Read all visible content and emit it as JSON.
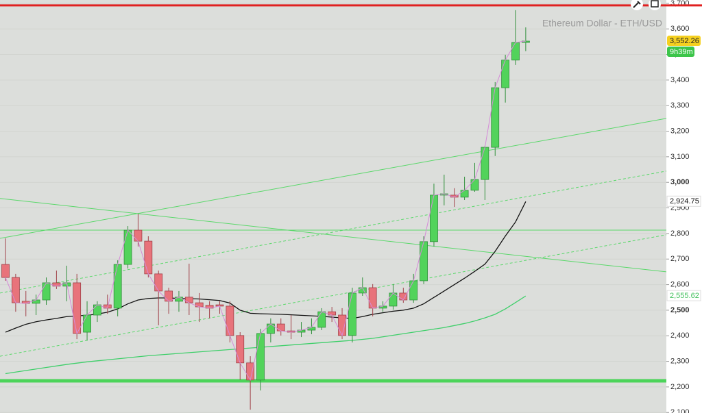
{
  "chart_data": {
    "type": "candlestick",
    "title": "Ethereum Dollar - ETH/USD",
    "ylim": [
      2098,
      3713
    ],
    "yticks": [
      {
        "value": 2100,
        "label": "2,100"
      },
      {
        "value": 2200,
        "label": "2,200"
      },
      {
        "value": 2300,
        "label": "2,300"
      },
      {
        "value": 2400,
        "label": "2,400"
      },
      {
        "value": 2500,
        "label": "2,500",
        "bold": true
      },
      {
        "value": 2600,
        "label": "2,600"
      },
      {
        "value": 2700,
        "label": "2,700"
      },
      {
        "value": 2800,
        "label": "2,800"
      },
      {
        "value": 2900,
        "label": "2,900"
      },
      {
        "value": 3000,
        "label": "3,000",
        "bold": true
      },
      {
        "value": 3100,
        "label": "3,100"
      },
      {
        "value": 3200,
        "label": "3,200"
      },
      {
        "value": 3300,
        "label": "3,300"
      },
      {
        "value": 3400,
        "label": "3,400"
      },
      {
        "value": 3500,
        "label": "3,500"
      },
      {
        "value": 3600,
        "label": "3,600"
      },
      {
        "value": 3700,
        "label": "3,700"
      }
    ],
    "grid": true,
    "up_color": "#52d35b",
    "down_color": "#e8737b",
    "close_line_color": "#d58ad8",
    "candles": [
      {
        "open": 2679,
        "high": 2781,
        "low": 2615,
        "close": 2628
      },
      {
        "open": 2628,
        "high": 2642,
        "low": 2494,
        "close": 2529
      },
      {
        "open": 2535,
        "high": 2575,
        "low": 2476,
        "close": 2527
      },
      {
        "open": 2527,
        "high": 2561,
        "low": 2481,
        "close": 2540
      },
      {
        "open": 2540,
        "high": 2628,
        "low": 2521,
        "close": 2607
      },
      {
        "open": 2607,
        "high": 2655,
        "low": 2583,
        "close": 2594
      },
      {
        "open": 2594,
        "high": 2674,
        "low": 2535,
        "close": 2607
      },
      {
        "open": 2607,
        "high": 2642,
        "low": 2387,
        "close": 2409
      },
      {
        "open": 2414,
        "high": 2535,
        "low": 2382,
        "close": 2481
      },
      {
        "open": 2481,
        "high": 2535,
        "low": 2454,
        "close": 2521
      },
      {
        "open": 2521,
        "high": 2561,
        "low": 2486,
        "close": 2508
      },
      {
        "open": 2508,
        "high": 2695,
        "low": 2476,
        "close": 2679
      },
      {
        "open": 2679,
        "high": 2829,
        "low": 2663,
        "close": 2813
      },
      {
        "open": 2813,
        "high": 2877,
        "low": 2749,
        "close": 2770
      },
      {
        "open": 2770,
        "high": 2789,
        "low": 2628,
        "close": 2642
      },
      {
        "open": 2642,
        "high": 2655,
        "low": 2441,
        "close": 2575
      },
      {
        "open": 2575,
        "high": 2588,
        "low": 2486,
        "close": 2535
      },
      {
        "open": 2535,
        "high": 2575,
        "low": 2494,
        "close": 2551
      },
      {
        "open": 2551,
        "high": 2682,
        "low": 2481,
        "close": 2529
      },
      {
        "open": 2529,
        "high": 2567,
        "low": 2454,
        "close": 2513
      },
      {
        "open": 2519,
        "high": 2535,
        "low": 2468,
        "close": 2508
      },
      {
        "open": 2521,
        "high": 2535,
        "low": 2486,
        "close": 2516
      },
      {
        "open": 2516,
        "high": 2535,
        "low": 2374,
        "close": 2401
      },
      {
        "open": 2401,
        "high": 2414,
        "low": 2227,
        "close": 2294
      },
      {
        "open": 2294,
        "high": 2320,
        "low": 2111,
        "close": 2227
      },
      {
        "open": 2227,
        "high": 2427,
        "low": 2186,
        "close": 2409
      },
      {
        "open": 2409,
        "high": 2468,
        "low": 2374,
        "close": 2446
      },
      {
        "open": 2446,
        "high": 2468,
        "low": 2401,
        "close": 2419
      },
      {
        "open": 2419,
        "high": 2481,
        "low": 2387,
        "close": 2414
      },
      {
        "open": 2414,
        "high": 2454,
        "low": 2395,
        "close": 2422
      },
      {
        "open": 2422,
        "high": 2468,
        "low": 2406,
        "close": 2433
      },
      {
        "open": 2433,
        "high": 2508,
        "low": 2422,
        "close": 2494
      },
      {
        "open": 2494,
        "high": 2513,
        "low": 2454,
        "close": 2481
      },
      {
        "open": 2481,
        "high": 2508,
        "low": 2387,
        "close": 2401
      },
      {
        "open": 2401,
        "high": 2588,
        "low": 2374,
        "close": 2567
      },
      {
        "open": 2567,
        "high": 2628,
        "low": 2556,
        "close": 2588
      },
      {
        "open": 2588,
        "high": 2602,
        "low": 2476,
        "close": 2508
      },
      {
        "open": 2508,
        "high": 2535,
        "low": 2494,
        "close": 2516
      },
      {
        "open": 2516,
        "high": 2602,
        "low": 2502,
        "close": 2567
      },
      {
        "open": 2567,
        "high": 2588,
        "low": 2529,
        "close": 2540
      },
      {
        "open": 2540,
        "high": 2642,
        "low": 2529,
        "close": 2615
      },
      {
        "open": 2615,
        "high": 2789,
        "low": 2602,
        "close": 2768
      },
      {
        "open": 2768,
        "high": 2995,
        "low": 2749,
        "close": 2950
      },
      {
        "open": 2950,
        "high": 3030,
        "low": 2910,
        "close": 2955
      },
      {
        "open": 2950,
        "high": 2977,
        "low": 2904,
        "close": 2942
      },
      {
        "open": 2942,
        "high": 3022,
        "low": 2931,
        "close": 2969
      },
      {
        "open": 2969,
        "high": 3076,
        "low": 2963,
        "close": 3011
      },
      {
        "open": 3011,
        "high": 3143,
        "low": 2931,
        "close": 3137
      },
      {
        "open": 3137,
        "high": 3392,
        "low": 3103,
        "close": 3370
      },
      {
        "open": 3370,
        "high": 3499,
        "low": 3312,
        "close": 3478
      },
      {
        "open": 3478,
        "high": 3673,
        "low": 3459,
        "close": 3547
      },
      {
        "open": 3547,
        "high": 3606,
        "low": 3513,
        "close": 3552.26
      }
    ],
    "price_label": {
      "value": 3552.26,
      "label": "3,552.26"
    },
    "countdown": "9h39m",
    "series": [
      {
        "color": "#111111",
        "label_color": "#111111",
        "values": [
          2414,
          2430,
          2445,
          2455,
          2462,
          2468,
          2475,
          2478,
          2480,
          2485,
          2492,
          2505,
          2525,
          2540,
          2546,
          2548,
          2548,
          2546,
          2545,
          2544,
          2541,
          2538,
          2528,
          2500,
          2488,
          2486,
          2485,
          2484,
          2482,
          2480,
          2478,
          2476,
          2473,
          2470,
          2468,
          2475,
          2484,
          2490,
          2496,
          2500,
          2508,
          2525,
          2550,
          2575,
          2600,
          2625,
          2652,
          2680,
          2730,
          2790,
          2845,
          2924.75
        ],
        "last_label": {
          "value": 2924.75,
          "label": "2,924.75"
        }
      },
      {
        "color": "#3fcf6a",
        "label_color": "#3fbf5a",
        "values": [
          2252,
          2258,
          2264,
          2270,
          2276,
          2282,
          2288,
          2293,
          2298,
          2302,
          2306,
          2310,
          2314,
          2318,
          2322,
          2325,
          2328,
          2331,
          2334,
          2337,
          2340,
          2343,
          2346,
          2349,
          2352,
          2355,
          2358,
          2361,
          2364,
          2367,
          2370,
          2373,
          2376,
          2379,
          2382,
          2386,
          2390,
          2396,
          2402,
          2408,
          2414,
          2420,
          2426,
          2432,
          2440,
          2448,
          2458,
          2470,
          2484,
          2505,
          2530,
          2555.62
        ],
        "last_label": {
          "value": 2555.62,
          "label": "2,555.62"
        }
      }
    ],
    "lines": [
      {
        "start": 3692,
        "end": 3692,
        "color": "#e02020",
        "style": "thick"
      },
      {
        "start": 2224,
        "end": 2224,
        "color": "#4cd45a",
        "style": "heavy"
      },
      {
        "start": 2813,
        "end": 2813,
        "color": "#5ad86a",
        "style": "thin"
      },
      {
        "start": 2781,
        "end": 3250,
        "color": "#5ad86a",
        "style": "thin"
      },
      {
        "start": 2937,
        "end": 2650,
        "color": "#5ad86a",
        "style": "thin"
      },
      {
        "start": 2567,
        "end": 3044,
        "color": "#5ad86a",
        "style": "dashed"
      },
      {
        "start": 2320,
        "end": 2795,
        "color": "#5ad86a",
        "style": "dashed"
      }
    ]
  }
}
